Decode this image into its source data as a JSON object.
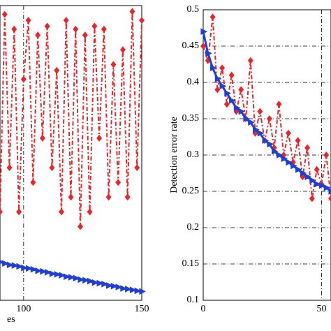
{
  "chart_data": [
    {
      "type": "line",
      "xlabel": "es",
      "x": [
        90,
        92,
        94,
        96,
        98,
        100,
        102,
        104,
        106,
        108,
        110,
        112,
        114,
        116,
        118,
        120,
        122,
        124,
        126,
        128,
        130,
        132,
        134,
        136,
        138,
        140,
        142,
        144,
        146,
        148,
        150
      ],
      "xlim": [
        90,
        150
      ],
      "xticks": [
        100,
        150
      ],
      "ylim": [
        0,
        1
      ],
      "grid": true,
      "series": [
        {
          "name": "red",
          "color": "#e8262a",
          "values": [
            0.3,
            0.97,
            0.45,
            0.92,
            0.3,
            0.75,
            0.95,
            0.4,
            0.9,
            0.55,
            0.93,
            0.45,
            0.78,
            0.3,
            0.95,
            0.35,
            0.92,
            0.25,
            0.9,
            0.3,
            0.93,
            0.55,
            0.92,
            0.35,
            0.8,
            0.4,
            0.85,
            0.35,
            0.98,
            0.45,
            0.95
          ]
        },
        {
          "name": "blue",
          "color": "#1f3fd6",
          "values": [
            0.13,
            0.125,
            0.12,
            0.118,
            0.115,
            0.11,
            0.108,
            0.105,
            0.1,
            0.098,
            0.095,
            0.09,
            0.088,
            0.085,
            0.08,
            0.078,
            0.075,
            0.07,
            0.068,
            0.065,
            0.06,
            0.058,
            0.055,
            0.05,
            0.048,
            0.045,
            0.04,
            0.038,
            0.035,
            0.032,
            0.03
          ]
        }
      ]
    },
    {
      "type": "line",
      "ylabel": "Detection error rate",
      "x": [
        0,
        2,
        4,
        6,
        8,
        10,
        12,
        14,
        16,
        18,
        20,
        22,
        24,
        26,
        28,
        30,
        32,
        34,
        36,
        38,
        40,
        42,
        44,
        46,
        48,
        50,
        52,
        54
      ],
      "xlim": [
        0,
        54
      ],
      "xticks": [
        0,
        50
      ],
      "ylim": [
        0.1,
        0.5
      ],
      "yticks": [
        0.1,
        0.15,
        0.2,
        0.25,
        0.3,
        0.35,
        0.4,
        0.45,
        0.5
      ],
      "grid": true,
      "series": [
        {
          "name": "red",
          "color": "#e8262a",
          "values": [
            0.45,
            0.43,
            0.49,
            0.39,
            0.42,
            0.37,
            0.41,
            0.36,
            0.39,
            0.35,
            0.43,
            0.33,
            0.36,
            0.32,
            0.35,
            0.31,
            0.37,
            0.3,
            0.33,
            0.29,
            0.32,
            0.27,
            0.31,
            0.24,
            0.28,
            0.26,
            0.3,
            0.24
          ]
        },
        {
          "name": "blue",
          "color": "#1f3fd6",
          "values": [
            0.47,
            0.44,
            0.42,
            0.405,
            0.395,
            0.385,
            0.375,
            0.365,
            0.36,
            0.35,
            0.345,
            0.335,
            0.33,
            0.32,
            0.315,
            0.305,
            0.3,
            0.295,
            0.29,
            0.285,
            0.28,
            0.275,
            0.27,
            0.265,
            0.26,
            0.258,
            0.255,
            0.25
          ]
        }
      ]
    }
  ]
}
